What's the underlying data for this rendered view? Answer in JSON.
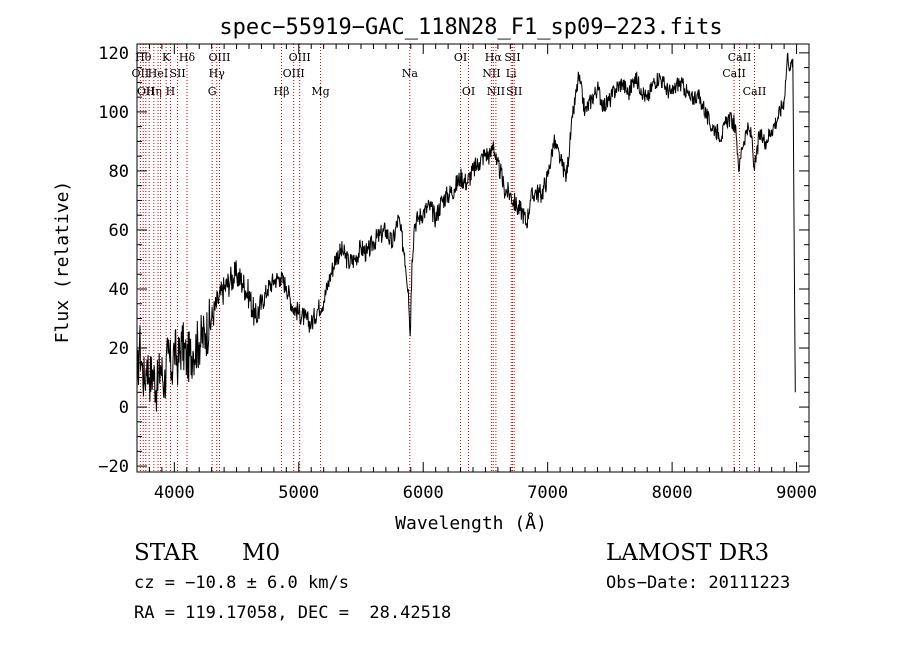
{
  "chart_data": {
    "type": "line",
    "title": "spec−55919−GAC_118N28_F1_sp09−223.fits",
    "xlabel": "Wavelength (Å)",
    "ylabel": "Flux (relative)",
    "xlim": [
      3700,
      9100
    ],
    "ylim": [
      -22,
      123
    ],
    "xticks": [
      4000,
      5000,
      6000,
      7000,
      8000,
      9000
    ],
    "yticks": [
      -20,
      0,
      20,
      40,
      60,
      80,
      100,
      120
    ],
    "ytick_labels": [
      "−20",
      "0",
      "20",
      "40",
      "60",
      "80",
      "100",
      "120"
    ],
    "grid": false,
    "series": [
      {
        "name": "flux",
        "x": [
          3700,
          3720,
          3740,
          3760,
          3780,
          3800,
          3830,
          3860,
          3890,
          3920,
          3950,
          3980,
          4000,
          4030,
          4060,
          4100,
          4150,
          4200,
          4250,
          4300,
          4350,
          4400,
          4450,
          4500,
          4550,
          4600,
          4650,
          4700,
          4750,
          4800,
          4850,
          4900,
          4950,
          5000,
          5050,
          5100,
          5150,
          5200,
          5250,
          5300,
          5350,
          5400,
          5450,
          5500,
          5550,
          5600,
          5650,
          5700,
          5750,
          5800,
          5850,
          5880,
          5895,
          5910,
          5930,
          5960,
          6000,
          6050,
          6100,
          6150,
          6200,
          6250,
          6300,
          6350,
          6400,
          6450,
          6500,
          6540,
          6563,
          6590,
          6620,
          6650,
          6700,
          6750,
          6800,
          6830,
          6860,
          6900,
          6950,
          7000,
          7050,
          7100,
          7150,
          7200,
          7250,
          7300,
          7350,
          7400,
          7450,
          7500,
          7550,
          7600,
          7650,
          7700,
          7750,
          7800,
          7850,
          7900,
          7950,
          8000,
          8050,
          8100,
          8150,
          8200,
          8250,
          8300,
          8350,
          8400,
          8450,
          8500,
          8520,
          8540,
          8560,
          8600,
          8640,
          8662,
          8700,
          8750,
          8800,
          8850,
          8900,
          8930,
          8950,
          8970,
          8990
        ],
        "values": [
          5,
          22,
          14,
          8,
          16,
          10,
          12,
          6,
          14,
          8,
          18,
          12,
          20,
          15,
          22,
          16,
          19,
          22,
          25,
          30,
          36,
          40,
          43,
          45,
          42,
          38,
          30,
          35,
          40,
          43,
          44,
          41,
          34,
          32,
          30,
          28,
          33,
          36,
          44,
          51,
          53,
          49,
          50,
          54,
          52,
          56,
          58,
          60,
          55,
          64,
          52,
          40,
          24,
          50,
          62,
          64,
          66,
          68,
          64,
          70,
          72,
          74,
          78,
          76,
          80,
          83,
          86,
          85,
          90,
          82,
          80,
          74,
          72,
          68,
          66,
          62,
          70,
          73,
          72,
          78,
          90,
          84,
          78,
          98,
          112,
          100,
          104,
          108,
          102,
          104,
          108,
          110,
          106,
          112,
          108,
          104,
          110,
          112,
          108,
          106,
          110,
          108,
          104,
          106,
          102,
          96,
          94,
          92,
          98,
          96,
          90,
          80,
          88,
          94,
          92,
          80,
          92,
          90,
          94,
          98,
          104,
          120,
          114,
          118,
          5
        ]
      }
    ],
    "line_markers": [
      {
        "x": 3727,
        "labels": [
          "OII"
        ],
        "row": 1
      },
      {
        "x": 3750,
        "labels": [
          "Hθ"
        ],
        "row": 0
      },
      {
        "x": 3771,
        "labels": [
          "OII"
        ],
        "row": 2
      },
      {
        "x": 3798,
        "labels": [],
        "row": 0
      },
      {
        "x": 3835,
        "labels": [
          "Hη"
        ],
        "row": 2
      },
      {
        "x": 3869,
        "labels": [
          "HeI"
        ],
        "row": 1
      },
      {
        "x": 3889,
        "labels": [],
        "row": 0
      },
      {
        "x": 3934,
        "labels": [
          "K"
        ],
        "row": 0
      },
      {
        "x": 3969,
        "labels": [
          "H"
        ],
        "row": 2
      },
      {
        "x": 4026,
        "labels": [
          "SII"
        ],
        "row": 1
      },
      {
        "x": 4102,
        "labels": [
          "Hδ"
        ],
        "row": 0
      },
      {
        "x": 4304,
        "labels": [
          "G"
        ],
        "row": 2
      },
      {
        "x": 4341,
        "labels": [
          "Hγ"
        ],
        "row": 1
      },
      {
        "x": 4363,
        "labels": [
          "OIII"
        ],
        "row": 0
      },
      {
        "x": 4861,
        "labels": [
          "Hβ"
        ],
        "row": 2
      },
      {
        "x": 4959,
        "labels": [
          "OIII"
        ],
        "row": 1
      },
      {
        "x": 5007,
        "labels": [
          "OIII"
        ],
        "row": 0
      },
      {
        "x": 5175,
        "labels": [
          "Mg"
        ],
        "row": 2
      },
      {
        "x": 5892,
        "labels": [
          "Na"
        ],
        "row": 1
      },
      {
        "x": 6300,
        "labels": [
          "OI"
        ],
        "row": 0
      },
      {
        "x": 6364,
        "labels": [
          "OI"
        ],
        "row": 2
      },
      {
        "x": 6548,
        "labels": [
          "NII"
        ],
        "row": 1
      },
      {
        "x": 6563,
        "labels": [
          "Hα"
        ],
        "row": 0
      },
      {
        "x": 6584,
        "labels": [
          "NII"
        ],
        "row": 2
      },
      {
        "x": 6707,
        "labels": [
          "Li"
        ],
        "row": 1
      },
      {
        "x": 6717,
        "labels": [
          "SII"
        ],
        "row": 0
      },
      {
        "x": 6731,
        "labels": [
          "SII"
        ],
        "row": 2
      },
      {
        "x": 8498,
        "labels": [
          "CaII"
        ],
        "row": 1
      },
      {
        "x": 8542,
        "labels": [
          "CaII"
        ],
        "row": 0
      },
      {
        "x": 8662,
        "labels": [
          "CaII"
        ],
        "row": 2
      }
    ]
  },
  "info": {
    "object_class": "STAR",
    "subclass": "M0",
    "survey": "LAMOST DR3",
    "velocity": "cz = −10.8 ± 6.0 km/s",
    "obs_date": "Obs−Date: 20111223",
    "coords": "RA = 119.17058, DEC =  28.42518"
  },
  "colors": {
    "axis": "#000000",
    "spectrum": "#000000",
    "marker_line": "#cc0000",
    "background": "#ffffff"
  }
}
